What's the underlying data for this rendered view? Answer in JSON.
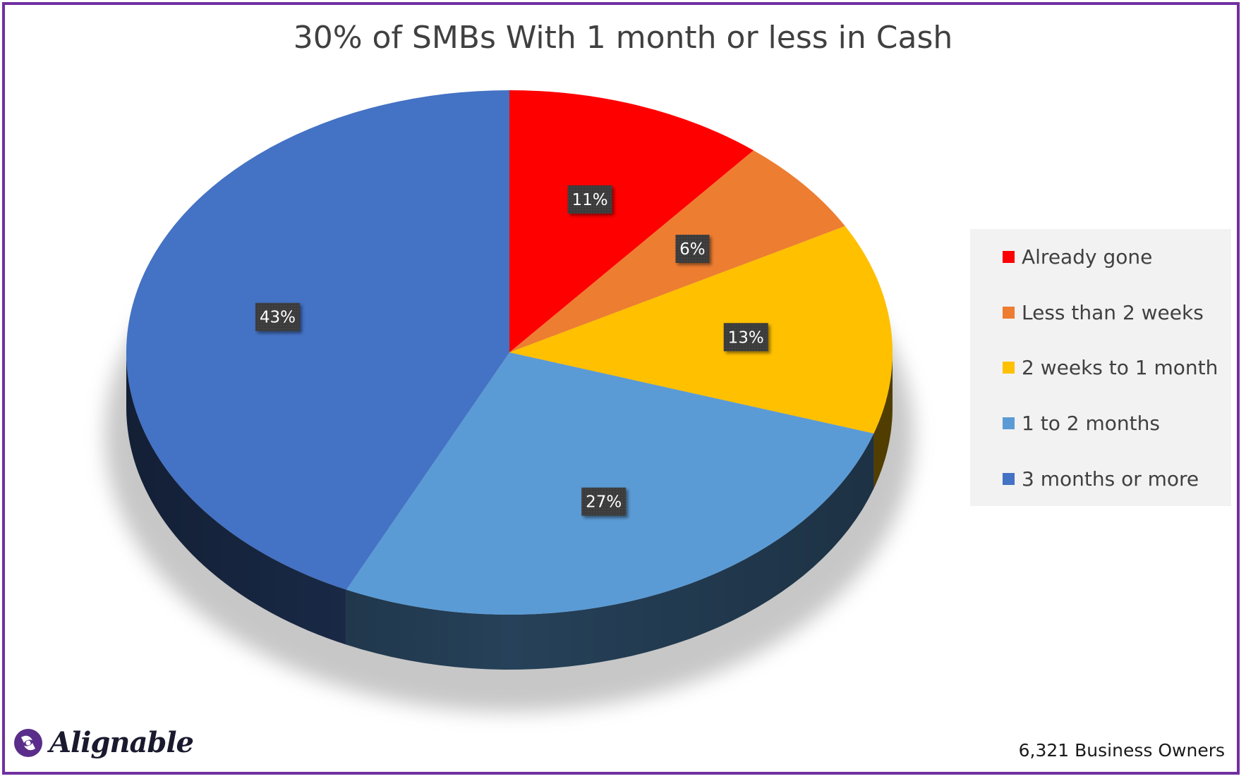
{
  "chart_data": {
    "type": "pie",
    "title": "30% of SMBs With 1 month or less in Cash",
    "categories": [
      "Already gone",
      "Less than 2 weeks",
      "2 weeks to 1 month",
      "1 to 2 months",
      "3 months or more"
    ],
    "values": [
      11,
      6,
      13,
      27,
      43
    ],
    "data_labels": [
      "11%",
      "6%",
      "13%",
      "27%",
      "43%"
    ],
    "colors": [
      "#ff0000",
      "#ed7d31",
      "#ffc000",
      "#5b9bd5",
      "#4472c4"
    ],
    "legend_position": "right",
    "style": "3d"
  },
  "footnote": "6,321 Business Owners",
  "logo": {
    "text": "Alignable",
    "icon": "alignable-logo-icon"
  }
}
